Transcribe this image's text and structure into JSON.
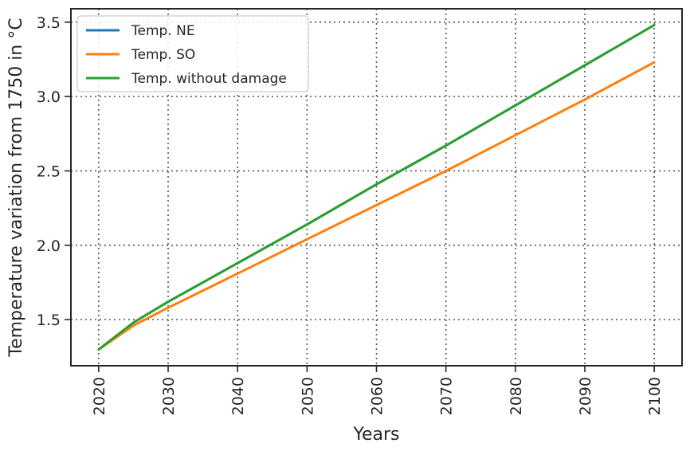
{
  "chart_data": {
    "type": "line",
    "xlabel": "Years",
    "ylabel": "Temperature variation from 1750 in °C",
    "xlim": [
      2016,
      2104
    ],
    "ylim": [
      1.19,
      3.59
    ],
    "xticks": [
      2020,
      2030,
      2040,
      2050,
      2060,
      2070,
      2080,
      2090,
      2100
    ],
    "yticks": [
      1.5,
      2.0,
      2.5,
      3.0,
      3.5
    ],
    "ytick_labels": [
      "1.5",
      "2.0",
      "2.5",
      "3.0",
      "3.5"
    ],
    "grid": true,
    "legend_position": "top-left",
    "series": [
      {
        "name": "Temp. NE",
        "color": "#1f77b4",
        "x": [
          2020,
          2025,
          2030,
          2040,
          2050,
          2060,
          2070,
          2080,
          2090,
          2100
        ],
        "y": [
          1.3,
          1.48,
          1.62,
          1.88,
          2.14,
          2.41,
          2.67,
          2.94,
          3.21,
          3.48
        ]
      },
      {
        "name": "Temp. SO",
        "color": "#ff7f0e",
        "x": [
          2020,
          2025,
          2030,
          2040,
          2050,
          2060,
          2070,
          2080,
          2090,
          2100
        ],
        "y": [
          1.3,
          1.46,
          1.58,
          1.81,
          2.04,
          2.27,
          2.5,
          2.74,
          2.98,
          3.23
        ]
      },
      {
        "name": "Temp.  without damage",
        "color": "#2ca02c",
        "x": [
          2020,
          2025,
          2030,
          2040,
          2050,
          2060,
          2070,
          2080,
          2090,
          2100
        ],
        "y": [
          1.3,
          1.48,
          1.62,
          1.88,
          2.14,
          2.41,
          2.67,
          2.94,
          3.21,
          3.48
        ]
      }
    ]
  }
}
